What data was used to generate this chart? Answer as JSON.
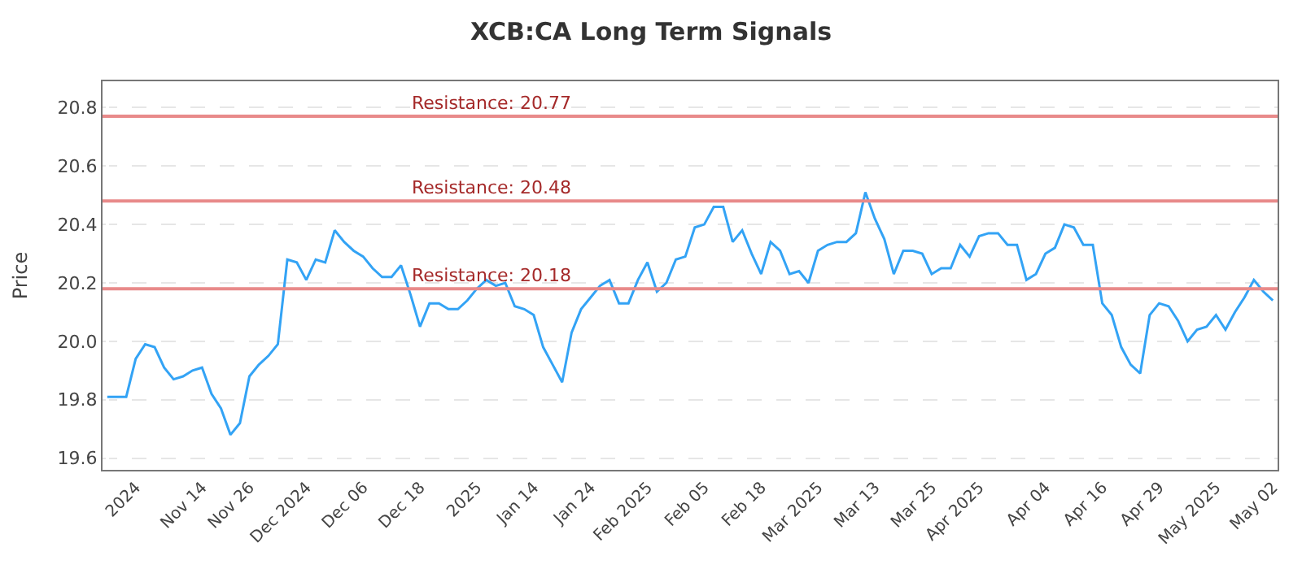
{
  "chart_data": {
    "type": "line",
    "title": "XCB:CA Long Term Signals",
    "ylabel": "Price",
    "categories": [
      null,
      null,
      null,
      "2024",
      null,
      null,
      null,
      null,
      null,
      null,
      "Nov 14",
      null,
      null,
      null,
      null,
      "Nov 26",
      null,
      null,
      null,
      null,
      null,
      "Dec 2024",
      null,
      null,
      null,
      null,
      null,
      "Dec 06",
      null,
      null,
      null,
      null,
      null,
      "Dec 18",
      null,
      null,
      null,
      null,
      null,
      "2025",
      null,
      null,
      null,
      null,
      null,
      "Jan 14",
      null,
      null,
      null,
      null,
      null,
      "Jan 24",
      null,
      null,
      null,
      null,
      null,
      "Feb 2025",
      null,
      null,
      null,
      null,
      null,
      "Feb 05",
      null,
      null,
      null,
      null,
      null,
      "Feb 18",
      null,
      null,
      null,
      null,
      null,
      "Mar 2025",
      null,
      null,
      null,
      null,
      null,
      "Mar 13",
      null,
      null,
      null,
      null,
      null,
      "Mar 25",
      null,
      null,
      null,
      null,
      "Apr 2025",
      null,
      null,
      null,
      null,
      null,
      null,
      "Apr 04",
      null,
      null,
      null,
      null,
      null,
      "Apr 16",
      null,
      null,
      null,
      null,
      null,
      "Apr 29",
      null,
      null,
      null,
      null,
      null,
      "May 2025",
      null,
      null,
      null,
      null,
      null,
      "May 02"
    ],
    "series": [
      {
        "color": "#33a3f5",
        "values": [
          19.81,
          19.81,
          19.81,
          19.94,
          19.99,
          19.98,
          19.91,
          19.87,
          19.88,
          19.9,
          19.91,
          19.82,
          19.77,
          19.68,
          19.72,
          19.88,
          19.92,
          19.95,
          19.99,
          20.28,
          20.27,
          20.21,
          20.28,
          20.27,
          20.38,
          20.34,
          20.31,
          20.29,
          20.25,
          20.22,
          20.22,
          20.26,
          20.16,
          20.05,
          20.13,
          20.13,
          20.11,
          20.11,
          20.14,
          20.18,
          20.21,
          20.19,
          20.2,
          20.12,
          20.11,
          20.09,
          19.98,
          19.92,
          19.86,
          20.03,
          20.11,
          20.15,
          20.19,
          20.21,
          20.13,
          20.13,
          20.21,
          20.27,
          20.17,
          20.2,
          20.28,
          20.29,
          20.39,
          20.4,
          20.46,
          20.46,
          20.34,
          20.38,
          20.3,
          20.23,
          20.34,
          20.31,
          20.23,
          20.24,
          20.2,
          20.31,
          20.33,
          20.34,
          20.34,
          20.37,
          20.51,
          20.42,
          20.35,
          20.23,
          20.31,
          20.31,
          20.3,
          20.23,
          20.25,
          20.25,
          20.33,
          20.29,
          20.36,
          20.37,
          20.37,
          20.33,
          20.33,
          20.21,
          20.23,
          20.3,
          20.32,
          20.4,
          20.39,
          20.33,
          20.33,
          20.13,
          20.09,
          19.98,
          19.92,
          19.89,
          20.09,
          20.13,
          20.12,
          20.07,
          20.0,
          20.04,
          20.05,
          20.09,
          20.04,
          20.1,
          20.15,
          20.21,
          20.17,
          20.14
        ]
      }
    ],
    "ylim": [
      19.56,
      20.89
    ],
    "yticks": [
      19.6,
      19.8,
      {
        "value": 20,
        "label": "20.0"
      },
      20.2,
      20.4,
      20.6,
      20.8
    ],
    "grid": "y",
    "marker": "none",
    "line_style": "solid",
    "ref_lines": [
      {
        "axis": "y",
        "value": 20.77,
        "label": "Resistance: 20.77",
        "color": "#e88a8a"
      },
      {
        "axis": "y",
        "value": 20.48,
        "label": "Resistance: 20.48",
        "color": "#e88a8a"
      },
      {
        "axis": "y",
        "value": 20.18,
        "label": "Resistance: 20.18",
        "color": "#e88a8a"
      }
    ]
  }
}
